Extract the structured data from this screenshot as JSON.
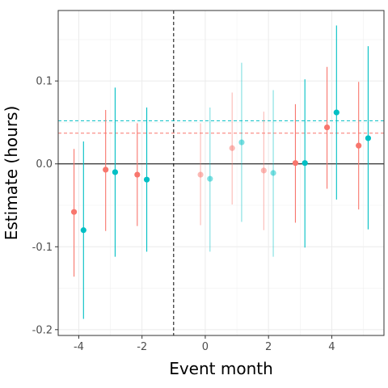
{
  "chart_data": {
    "type": "scatter",
    "xlabel": "Event month",
    "ylabel": "Estimate (hours)",
    "x_ticks": [
      -4,
      -2,
      0,
      2,
      4
    ],
    "x_tick_labels": [
      "-4",
      "-2",
      "0",
      "2",
      "4"
    ],
    "y_ticks": [
      -0.2,
      -0.1,
      0.0,
      0.1
    ],
    "y_tick_labels": [
      "-0.2",
      "-0.1",
      "0.0",
      "0.1"
    ],
    "xlim": [
      -4.65,
      5.65
    ],
    "ylim": [
      -0.207,
      0.185
    ],
    "grid": true,
    "legend": "none",
    "event_line_x": -1,
    "zero_line_y": 0,
    "series": [
      {
        "color": "#F8766D",
        "mean_line_y": 0.037,
        "points": [
          {
            "x": -4,
            "y": -0.058,
            "lo": -0.136,
            "hi": 0.018,
            "faded": false
          },
          {
            "x": -3,
            "y": -0.007,
            "lo": -0.081,
            "hi": 0.065,
            "faded": false
          },
          {
            "x": -2,
            "y": -0.013,
            "lo": -0.075,
            "hi": 0.049,
            "faded": false
          },
          {
            "x": 0,
            "y": -0.013,
            "lo": -0.074,
            "hi": 0.049,
            "faded": true
          },
          {
            "x": 1,
            "y": 0.019,
            "lo": -0.049,
            "hi": 0.086,
            "faded": true
          },
          {
            "x": 2,
            "y": -0.008,
            "lo": -0.08,
            "hi": 0.063,
            "faded": true
          },
          {
            "x": 3,
            "y": 0.001,
            "lo": -0.071,
            "hi": 0.072,
            "faded": false
          },
          {
            "x": 4,
            "y": 0.044,
            "lo": -0.03,
            "hi": 0.117,
            "faded": false
          },
          {
            "x": 5,
            "y": 0.022,
            "lo": -0.055,
            "hi": 0.099,
            "faded": false
          }
        ]
      },
      {
        "color": "#00BFC4",
        "mean_line_y": 0.052,
        "points": [
          {
            "x": -4,
            "y": -0.08,
            "lo": -0.187,
            "hi": 0.027,
            "faded": false
          },
          {
            "x": -3,
            "y": -0.01,
            "lo": -0.112,
            "hi": 0.092,
            "faded": false
          },
          {
            "x": -2,
            "y": -0.019,
            "lo": -0.106,
            "hi": 0.068,
            "faded": false
          },
          {
            "x": 0,
            "y": -0.018,
            "lo": -0.106,
            "hi": 0.068,
            "faded": true
          },
          {
            "x": 1,
            "y": 0.026,
            "lo": -0.07,
            "hi": 0.122,
            "faded": true
          },
          {
            "x": 2,
            "y": -0.011,
            "lo": -0.112,
            "hi": 0.089,
            "faded": true
          },
          {
            "x": 3,
            "y": 0.001,
            "lo": -0.101,
            "hi": 0.102,
            "faded": false
          },
          {
            "x": 4,
            "y": 0.062,
            "lo": -0.043,
            "hi": 0.167,
            "faded": false
          },
          {
            "x": 5,
            "y": 0.031,
            "lo": -0.079,
            "hi": 0.142,
            "faded": false
          }
        ]
      }
    ]
  }
}
